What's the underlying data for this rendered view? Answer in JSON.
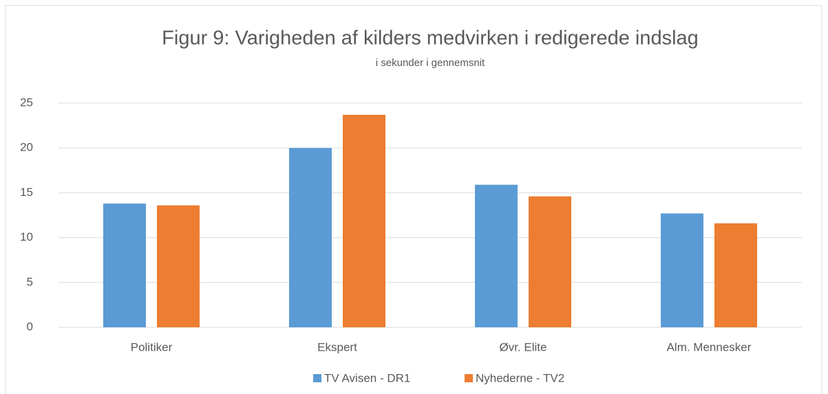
{
  "chart_data": {
    "type": "bar",
    "title": "Figur 9: Varigheden af kilders medvirken i redigerede indslag",
    "subtitle": "i sekunder i gennemsnit",
    "categories": [
      "Politiker",
      "Ekspert",
      "Øvr. Elite",
      "Alm. Mennesker"
    ],
    "series": [
      {
        "name": "TV Avisen - DR1",
        "color": "#5b9bd5",
        "values": [
          13.8,
          20.0,
          15.9,
          12.7
        ]
      },
      {
        "name": "Nyhederne - TV2",
        "color": "#ed7d31",
        "values": [
          13.6,
          23.7,
          14.6,
          11.6
        ]
      }
    ],
    "ylim": [
      0,
      25
    ],
    "yticks": [
      0,
      5,
      10,
      15,
      20,
      25
    ],
    "grid": true,
    "legend": "bottom"
  }
}
